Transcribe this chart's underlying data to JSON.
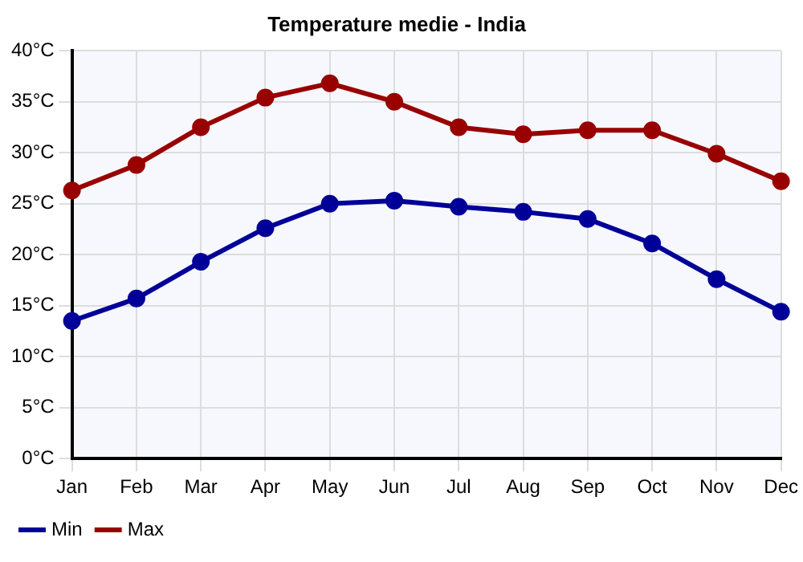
{
  "chart_data": {
    "type": "line",
    "title": "Temperature medie - India",
    "categories": [
      "Jan",
      "Feb",
      "Mar",
      "Apr",
      "May",
      "Jun",
      "Jul",
      "Aug",
      "Sep",
      "Oct",
      "Nov",
      "Dec"
    ],
    "series": [
      {
        "name": "Min",
        "color": "#000099",
        "values": [
          13.5,
          15.7,
          19.3,
          22.6,
          25.0,
          25.3,
          24.7,
          24.2,
          23.5,
          21.1,
          17.6,
          14.4
        ]
      },
      {
        "name": "Max",
        "color": "#990000",
        "values": [
          26.3,
          28.8,
          32.5,
          35.4,
          36.8,
          35.0,
          32.5,
          31.8,
          32.2,
          32.2,
          29.9,
          27.2
        ]
      }
    ],
    "ylim": [
      0,
      40
    ],
    "yticks": [
      {
        "value": 0,
        "label": "0°C"
      },
      {
        "value": 5,
        "label": "5°C"
      },
      {
        "value": 10,
        "label": "10°C"
      },
      {
        "value": 15,
        "label": "15°C"
      },
      {
        "value": 20,
        "label": "20°C"
      },
      {
        "value": 25,
        "label": "25°C"
      },
      {
        "value": 30,
        "label": "30°C"
      },
      {
        "value": 35,
        "label": "35°C"
      },
      {
        "value": 40,
        "label": "40°C"
      }
    ],
    "grid": true,
    "legend": "bottom left",
    "marker": "circle",
    "line_style": "solid"
  }
}
